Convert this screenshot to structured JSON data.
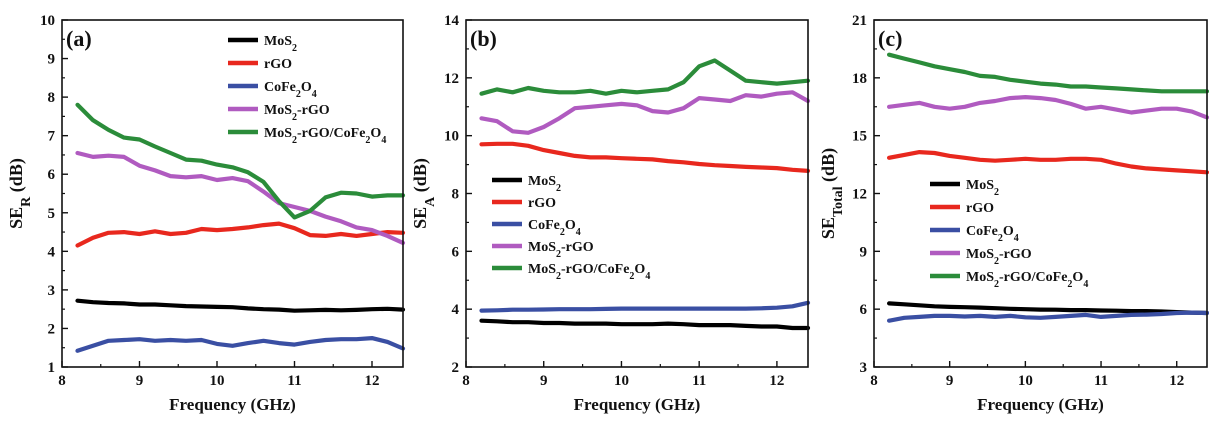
{
  "chart_data": [
    {
      "type": "line",
      "panel_label": "(a)",
      "xlabel": "Frequency (GHz)",
      "ylabel": {
        "base": "SE",
        "sub": "R",
        "unit": " (dB)"
      },
      "xlim": [
        8,
        12.4
      ],
      "ylim": [
        1,
        10
      ],
      "xticks": [
        "8",
        "9",
        "10",
        "11",
        "12"
      ],
      "yticks": [
        "1",
        "2",
        "3",
        "4",
        "5",
        "6",
        "7",
        "8",
        "9",
        "10"
      ],
      "legend_position": "top-right",
      "x": [
        8.2,
        8.4,
        8.6,
        8.8,
        9.0,
        9.2,
        9.4,
        9.6,
        9.8,
        10.0,
        10.2,
        10.4,
        10.6,
        10.8,
        11.0,
        11.2,
        11.4,
        11.6,
        11.8,
        12.0,
        12.2,
        12.4
      ],
      "series": [
        {
          "name": [
            "MoS",
            "2",
            ""
          ],
          "color": "#000000",
          "values": [
            2.72,
            2.68,
            2.66,
            2.65,
            2.62,
            2.62,
            2.6,
            2.58,
            2.57,
            2.56,
            2.55,
            2.52,
            2.5,
            2.49,
            2.46,
            2.47,
            2.48,
            2.47,
            2.48,
            2.5,
            2.51,
            2.49
          ]
        },
        {
          "name": [
            "rGO",
            "",
            ""
          ],
          "color": "#e8281e",
          "values": [
            4.15,
            4.35,
            4.48,
            4.5,
            4.45,
            4.52,
            4.45,
            4.48,
            4.58,
            4.55,
            4.58,
            4.62,
            4.68,
            4.72,
            4.6,
            4.42,
            4.4,
            4.45,
            4.4,
            4.45,
            4.5,
            4.48
          ]
        },
        {
          "name": [
            "CoFe",
            "2",
            "O",
            "4"
          ],
          "color": "#3a4fa3",
          "values": [
            1.42,
            1.55,
            1.68,
            1.7,
            1.72,
            1.68,
            1.7,
            1.68,
            1.7,
            1.6,
            1.55,
            1.62,
            1.68,
            1.62,
            1.58,
            1.65,
            1.7,
            1.72,
            1.72,
            1.75,
            1.65,
            1.48
          ]
        },
        {
          "name": [
            "MoS",
            "2",
            "-rGO"
          ],
          "color": "#b05bc0",
          "values": [
            6.55,
            6.45,
            6.48,
            6.45,
            6.22,
            6.1,
            5.95,
            5.92,
            5.95,
            5.85,
            5.9,
            5.82,
            5.55,
            5.25,
            5.15,
            5.05,
            4.9,
            4.78,
            4.62,
            4.55,
            4.4,
            4.22
          ]
        },
        {
          "name": [
            "MoS",
            "2",
            "-rGO/CoFe",
            "2",
            "O",
            "4"
          ],
          "color": "#2b8c3a",
          "values": [
            7.8,
            7.4,
            7.15,
            6.95,
            6.9,
            6.72,
            6.55,
            6.38,
            6.35,
            6.25,
            6.18,
            6.05,
            5.8,
            5.3,
            4.88,
            5.05,
            5.4,
            5.52,
            5.5,
            5.42,
            5.45,
            5.45
          ]
        }
      ]
    },
    {
      "type": "line",
      "panel_label": "(b)",
      "xlabel": "Frequency (GHz)",
      "ylabel": {
        "base": "SE",
        "sub": "A",
        "unit": " (dB)"
      },
      "xlim": [
        8,
        12.4
      ],
      "ylim": [
        2,
        14
      ],
      "xticks": [
        "8",
        "9",
        "10",
        "11",
        "12"
      ],
      "yticks": [
        "2",
        "4",
        "6",
        "8",
        "10",
        "12",
        "14"
      ],
      "legend_position": "center-left",
      "x": [
        8.2,
        8.4,
        8.6,
        8.8,
        9.0,
        9.2,
        9.4,
        9.6,
        9.8,
        10.0,
        10.2,
        10.4,
        10.6,
        10.8,
        11.0,
        11.2,
        11.4,
        11.6,
        11.8,
        12.0,
        12.2,
        12.4
      ],
      "series": [
        {
          "name": [
            "MoS",
            "2",
            ""
          ],
          "color": "#000000",
          "values": [
            3.6,
            3.58,
            3.55,
            3.55,
            3.52,
            3.52,
            3.5,
            3.5,
            3.5,
            3.48,
            3.48,
            3.48,
            3.5,
            3.48,
            3.45,
            3.45,
            3.45,
            3.42,
            3.4,
            3.4,
            3.35,
            3.35
          ]
        },
        {
          "name": [
            "rGO",
            "",
            ""
          ],
          "color": "#e8281e",
          "values": [
            9.7,
            9.72,
            9.72,
            9.65,
            9.5,
            9.4,
            9.3,
            9.25,
            9.25,
            9.22,
            9.2,
            9.18,
            9.12,
            9.08,
            9.02,
            8.98,
            8.95,
            8.92,
            8.9,
            8.88,
            8.82,
            8.78
          ]
        },
        {
          "name": [
            "CoFe",
            "2",
            "O",
            "4"
          ],
          "color": "#3a4fa3",
          "values": [
            3.95,
            3.96,
            3.98,
            3.98,
            3.99,
            4.0,
            4.0,
            4.0,
            4.01,
            4.02,
            4.02,
            4.02,
            4.02,
            4.02,
            4.02,
            4.02,
            4.02,
            4.02,
            4.03,
            4.05,
            4.1,
            4.22
          ]
        },
        {
          "name": [
            "MoS",
            "2",
            "-rGO"
          ],
          "color": "#b05bc0",
          "values": [
            10.6,
            10.5,
            10.15,
            10.1,
            10.3,
            10.6,
            10.95,
            11.0,
            11.05,
            11.1,
            11.05,
            10.85,
            10.8,
            10.95,
            11.3,
            11.25,
            11.2,
            11.4,
            11.35,
            11.45,
            11.5,
            11.2
          ]
        },
        {
          "name": [
            "MoS",
            "2",
            "-rGO/CoFe",
            "2",
            "O",
            "4"
          ],
          "color": "#2b8c3a",
          "values": [
            11.45,
            11.6,
            11.5,
            11.65,
            11.55,
            11.5,
            11.5,
            11.55,
            11.45,
            11.55,
            11.5,
            11.55,
            11.6,
            11.85,
            12.4,
            12.6,
            12.25,
            11.9,
            11.85,
            11.8,
            11.85,
            11.9
          ]
        }
      ]
    },
    {
      "type": "line",
      "panel_label": "(c)",
      "xlabel": "Frequency (GHz)",
      "ylabel": {
        "base": "SE",
        "sub": "Total",
        "unit": " (dB)"
      },
      "xlim": [
        8,
        12.4
      ],
      "ylim": [
        3,
        21
      ],
      "xticks": [
        "8",
        "9",
        "10",
        "11",
        "12"
      ],
      "yticks": [
        "3",
        "6",
        "9",
        "12",
        "15",
        "18",
        "21"
      ],
      "legend_position": "center-left",
      "x": [
        8.2,
        8.4,
        8.6,
        8.8,
        9.0,
        9.2,
        9.4,
        9.6,
        9.8,
        10.0,
        10.2,
        10.4,
        10.6,
        10.8,
        11.0,
        11.2,
        11.4,
        11.6,
        11.8,
        12.0,
        12.2,
        12.4
      ],
      "series": [
        {
          "name": [
            "MoS",
            "2",
            ""
          ],
          "color": "#000000",
          "values": [
            6.3,
            6.25,
            6.2,
            6.15,
            6.12,
            6.1,
            6.08,
            6.05,
            6.02,
            6.0,
            5.98,
            5.97,
            5.95,
            5.95,
            5.93,
            5.92,
            5.9,
            5.9,
            5.88,
            5.85,
            5.82,
            5.8
          ]
        },
        {
          "name": [
            "rGO",
            "",
            ""
          ],
          "color": "#e8281e",
          "values": [
            13.85,
            14.0,
            14.15,
            14.1,
            13.95,
            13.85,
            13.75,
            13.7,
            13.75,
            13.8,
            13.75,
            13.75,
            13.8,
            13.8,
            13.75,
            13.55,
            13.4,
            13.3,
            13.25,
            13.2,
            13.15,
            13.1
          ]
        },
        {
          "name": [
            "CoFe",
            "2",
            "O",
            "4"
          ],
          "color": "#3a4fa3",
          "values": [
            5.4,
            5.55,
            5.6,
            5.65,
            5.65,
            5.62,
            5.65,
            5.6,
            5.65,
            5.58,
            5.55,
            5.6,
            5.65,
            5.7,
            5.6,
            5.65,
            5.7,
            5.72,
            5.75,
            5.8,
            5.82,
            5.8
          ]
        },
        {
          "name": [
            "MoS",
            "2",
            "-rGO"
          ],
          "color": "#b05bc0",
          "values": [
            16.5,
            16.6,
            16.7,
            16.5,
            16.4,
            16.5,
            16.7,
            16.8,
            16.95,
            17.0,
            16.95,
            16.85,
            16.65,
            16.4,
            16.5,
            16.35,
            16.2,
            16.3,
            16.4,
            16.4,
            16.25,
            15.95
          ]
        },
        {
          "name": [
            "MoS",
            "2",
            "-rGO/CoFe",
            "2",
            "O",
            "4"
          ],
          "color": "#2b8c3a",
          "values": [
            19.2,
            19.0,
            18.8,
            18.6,
            18.45,
            18.3,
            18.1,
            18.05,
            17.9,
            17.8,
            17.7,
            17.65,
            17.55,
            17.55,
            17.5,
            17.45,
            17.4,
            17.35,
            17.3,
            17.3,
            17.3,
            17.3
          ]
        }
      ]
    }
  ]
}
